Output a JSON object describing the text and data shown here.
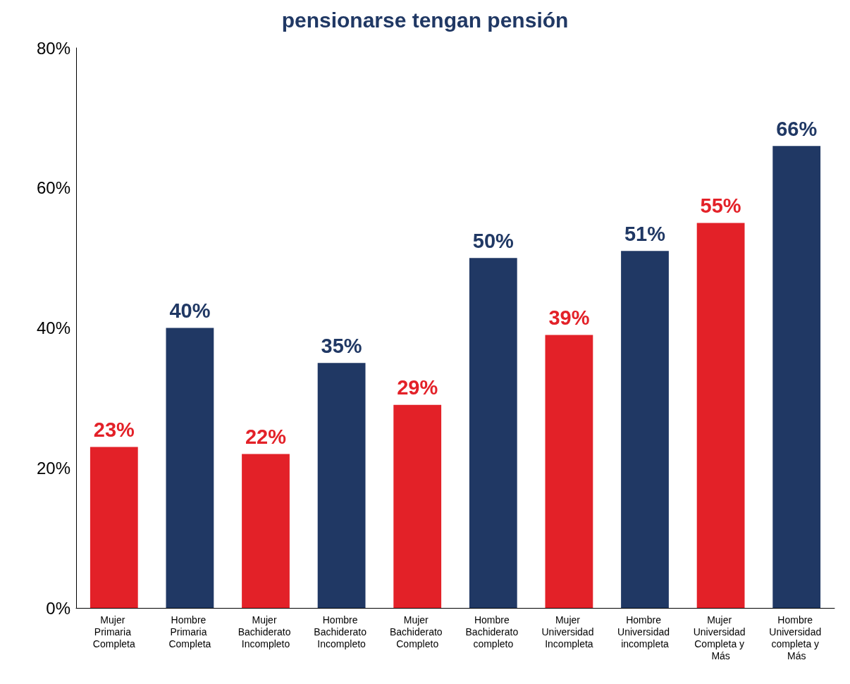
{
  "chart_data": {
    "type": "bar",
    "title": "pensionarse tengan pensión",
    "categories": [
      "Mujer Primaria Completa",
      "Hombre Primaria Completa",
      "Mujer Bachiderato Incompleto",
      "Hombre Bachiderato Incompleto",
      "Mujer Bachiderato Completo",
      "Hombre Bachiderato completo",
      "Mujer Universidad Incompleta",
      "Hombre Universidad incompleta",
      "Mujer Universidad Completa y Más",
      "Hombre Universidad completa y Más"
    ],
    "values": [
      23,
      40,
      22,
      35,
      29,
      50,
      39,
      51,
      55,
      66
    ],
    "colors": [
      "#e32128",
      "#203864",
      "#e32128",
      "#203864",
      "#e32128",
      "#203864",
      "#e32128",
      "#203864",
      "#e32128",
      "#203864"
    ],
    "value_labels": [
      "23%",
      "40%",
      "22%",
      "35%",
      "29%",
      "50%",
      "39%",
      "51%",
      "55%",
      "66%"
    ],
    "ylim": [
      0,
      80
    ],
    "yticks": [
      {
        "value": 0,
        "label": "0%"
      },
      {
        "value": 20,
        "label": "20%"
      },
      {
        "value": 40,
        "label": "40%"
      },
      {
        "value": 60,
        "label": "60%"
      },
      {
        "value": 80,
        "label": "80%"
      }
    ],
    "grid": false
  }
}
